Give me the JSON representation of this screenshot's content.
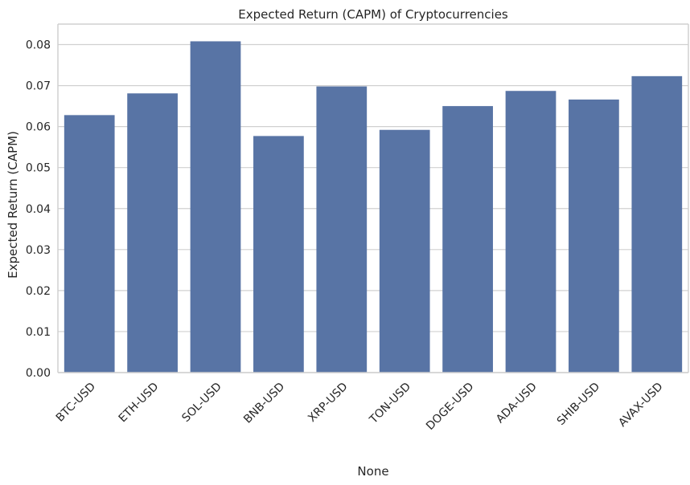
{
  "chart_data": {
    "type": "bar",
    "title": "Expected Return (CAPM) of Cryptocurrencies",
    "xlabel": "None",
    "ylabel": "Expected Return (CAPM)",
    "categories": [
      "BTC-USD",
      "ETH-USD",
      "SOL-USD",
      "BNB-USD",
      "XRP-USD",
      "TON-USD",
      "DOGE-USD",
      "ADA-USD",
      "SHIB-USD",
      "AVAX-USD"
    ],
    "values": [
      0.0628,
      0.0681,
      0.0808,
      0.0577,
      0.0698,
      0.0592,
      0.065,
      0.0687,
      0.0666,
      0.0723
    ],
    "ylim": [
      0,
      0.085
    ],
    "yticks": [
      "0.00",
      "0.01",
      "0.02",
      "0.03",
      "0.04",
      "0.05",
      "0.06",
      "0.07",
      "0.08"
    ],
    "grid": "horizontal",
    "bar_color": "#5874a5",
    "grid_color": "#d0d0d0",
    "axis_color": "#d0d0d0",
    "background": "#ffffff"
  }
}
